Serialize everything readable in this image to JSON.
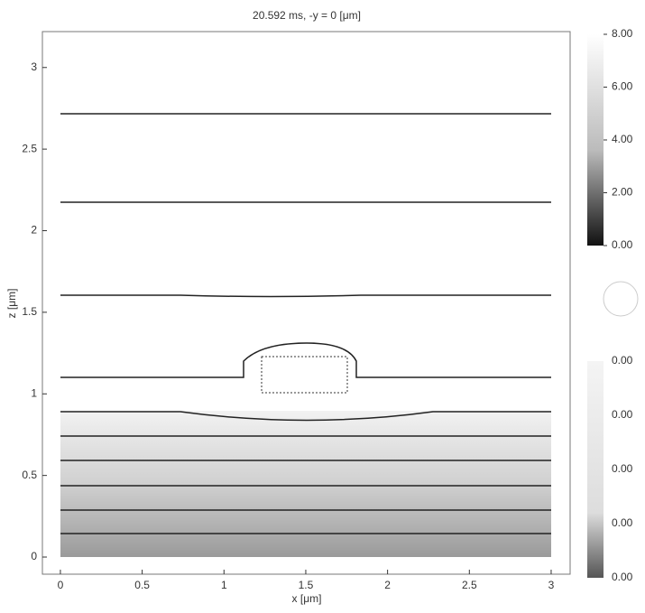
{
  "chart_data": {
    "type": "field",
    "title": "20.592 ms, -y =   0 [μm]",
    "x_label": "x [μm]",
    "y_label": "z [μm]",
    "xlim": [
      -0.11,
      3.116
    ],
    "ylim": [
      -0.105,
      3.22
    ],
    "xticks": [
      0,
      0.5,
      1,
      1.5,
      2,
      2.5,
      3
    ],
    "yticks": [
      0,
      0.5,
      1,
      1.5,
      2,
      2.5,
      3
    ],
    "colorbar_top": {
      "lim": [
        0,
        8
      ],
      "ticks": [
        {
          "value": 8,
          "label": "8.00"
        },
        {
          "value": 6,
          "label": "6.00"
        },
        {
          "value": 4,
          "label": "4.00"
        },
        {
          "value": 2,
          "label": "2.00"
        },
        {
          "value": 0,
          "label": "0.00"
        }
      ]
    },
    "colorbar_bottom": {
      "tick_labels": [
        "0.00",
        "0.00",
        "0.00",
        "0.00",
        "0.00"
      ]
    }
  }
}
